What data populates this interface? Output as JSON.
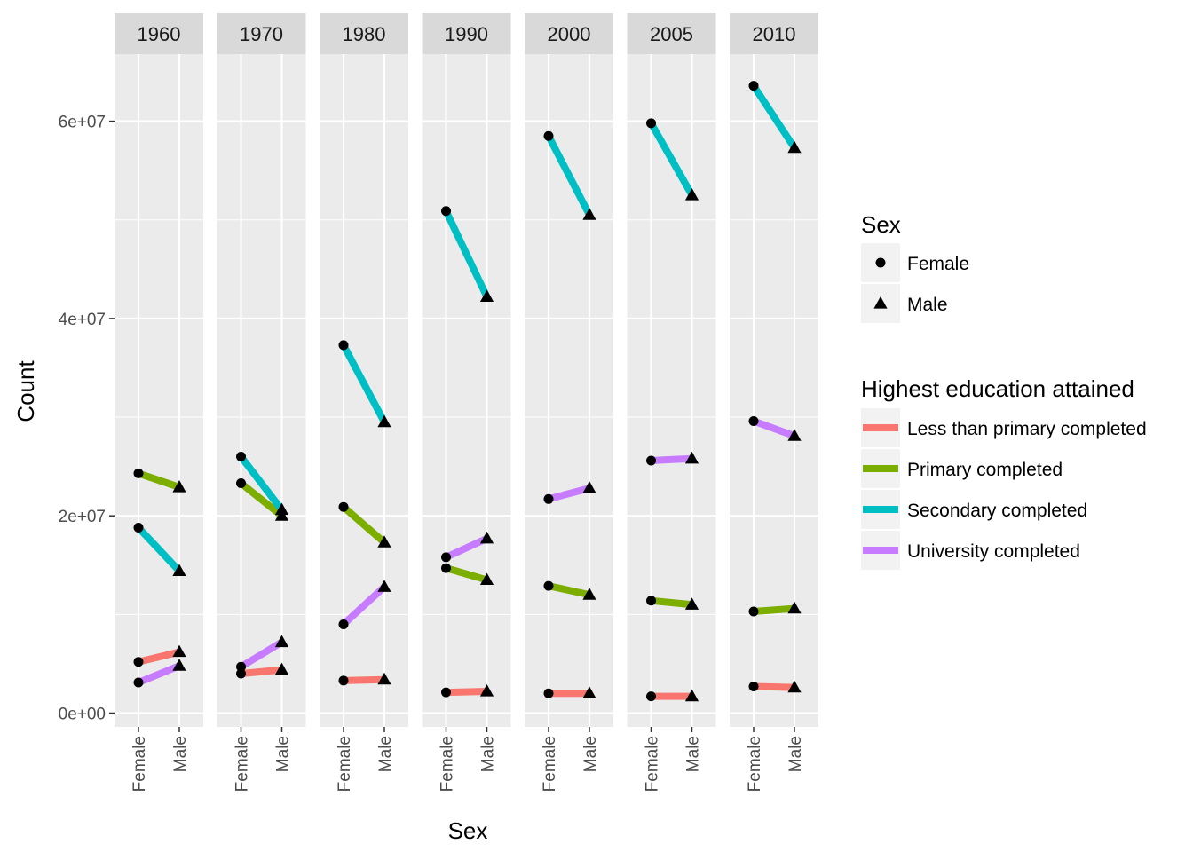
{
  "chart_data": {
    "type": "line",
    "facet_by": "year",
    "facets": [
      "1960",
      "1970",
      "1980",
      "1990",
      "2000",
      "2005",
      "2010"
    ],
    "x_categories": [
      "Female",
      "Male"
    ],
    "xlabel": "Sex",
    "ylabel": "Count",
    "ylim": [
      -1200000,
      67500000
    ],
    "y_ticks": [
      0,
      20000000,
      40000000,
      60000000
    ],
    "y_tick_labels": [
      "0e+00",
      "2e+07",
      "4e+07",
      "6e+07"
    ],
    "grid": true,
    "legend_position": "right",
    "legends": [
      {
        "title": "Sex",
        "entries": [
          {
            "label": "Female",
            "shape": "circle"
          },
          {
            "label": "Male",
            "shape": "triangle"
          }
        ]
      },
      {
        "title": "Highest education attained",
        "entries": [
          {
            "label": "Less than primary completed",
            "color": "#F8766D"
          },
          {
            "label": "Primary completed",
            "color": "#7CAE00"
          },
          {
            "label": "Secondary completed",
            "color": "#00BFC4"
          },
          {
            "label": "University completed",
            "color": "#C77CFF"
          }
        ]
      }
    ],
    "series": [
      {
        "name": "Less than primary completed",
        "color": "#F8766D",
        "values": {
          "1960": [
            5200000,
            6200000
          ],
          "1970": [
            4000000,
            4400000
          ],
          "1980": [
            3300000,
            3400000
          ],
          "1990": [
            2100000,
            2200000
          ],
          "2000": [
            2000000,
            2000000
          ],
          "2005": [
            1700000,
            1700000
          ],
          "2010": [
            2700000,
            2600000
          ]
        }
      },
      {
        "name": "Primary completed",
        "color": "#7CAE00",
        "values": {
          "1960": [
            24300000,
            22900000
          ],
          "1970": [
            23300000,
            20000000
          ],
          "1980": [
            20900000,
            17300000
          ],
          "1990": [
            14700000,
            13500000
          ],
          "2000": [
            12900000,
            12000000
          ],
          "2005": [
            11400000,
            11000000
          ],
          "2010": [
            10300000,
            10600000
          ]
        }
      },
      {
        "name": "Secondary completed",
        "color": "#00BFC4",
        "values": {
          "1960": [
            18800000,
            14400000
          ],
          "1970": [
            26000000,
            20600000
          ],
          "1980": [
            37300000,
            29500000
          ],
          "1990": [
            50900000,
            42200000
          ],
          "2000": [
            58500000,
            50500000
          ],
          "2005": [
            59800000,
            52500000
          ],
          "2010": [
            63600000,
            57300000
          ]
        }
      },
      {
        "name": "University completed",
        "color": "#C77CFF",
        "values": {
          "1960": [
            3100000,
            4800000
          ],
          "1970": [
            4700000,
            7200000
          ],
          "1980": [
            9000000,
            12800000
          ],
          "1990": [
            15800000,
            17700000
          ],
          "2000": [
            21700000,
            22800000
          ],
          "2005": [
            25600000,
            25800000
          ],
          "2010": [
            29600000,
            28100000
          ]
        }
      }
    ]
  }
}
